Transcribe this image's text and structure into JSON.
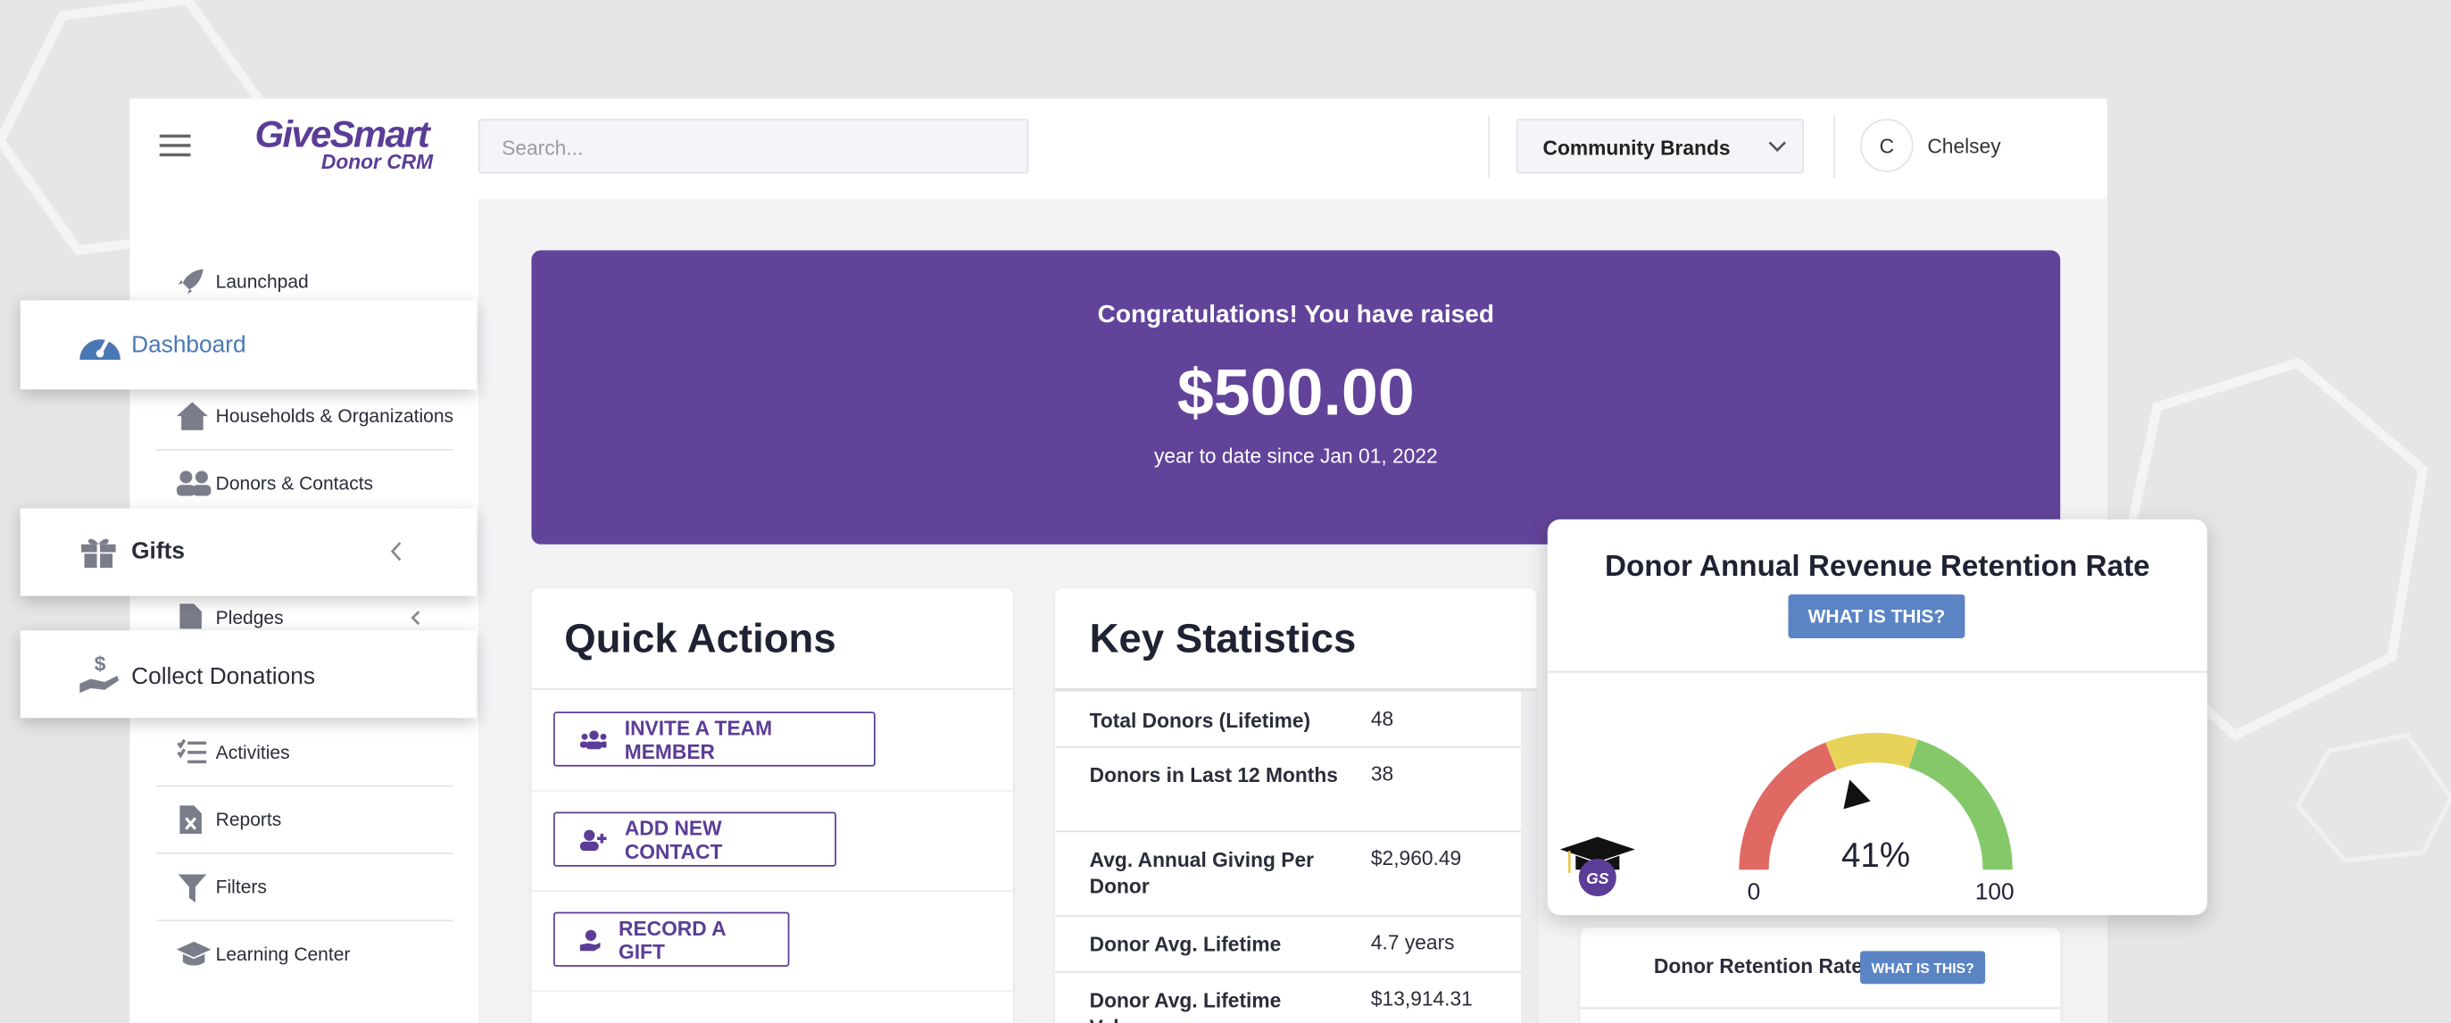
{
  "header": {
    "logo": "GiveSmart",
    "logo_sub": "Donor CRM",
    "search_placeholder": "Search...",
    "organization": "Community Brands",
    "user_initial": "C",
    "user_name": "Chelsey"
  },
  "sidebar": {
    "items": [
      "Launchpad",
      "Dashboard",
      "Households & Organizations",
      "Donors & Contacts",
      "Gifts",
      "Pledges",
      "Collect Donations",
      "Activities",
      "Reports",
      "Filters",
      "Learning Center"
    ]
  },
  "banner": {
    "heading": "Congratulations! You have raised",
    "amount": "$500.00",
    "caption": "year to date since Jan 01, 2022"
  },
  "quick_actions": {
    "title": "Quick Actions",
    "buttons": [
      "INVITE A TEAM MEMBER",
      "ADD NEW CONTACT",
      "RECORD A GIFT"
    ]
  },
  "key_statistics": {
    "title": "Key Statistics",
    "rows": [
      [
        "Total Donors (Lifetime)",
        "48"
      ],
      [
        "Donors in Last 12 Months",
        "38"
      ],
      [
        "Avg. Annual Giving Per Donor",
        "$2,960.49"
      ],
      [
        "Donor Avg. Lifetime",
        "4.7 years"
      ],
      [
        "Donor Avg. Lifetime Value",
        "$13,914.31"
      ]
    ]
  },
  "retention_card": {
    "title": "Donor Annual Revenue Retention Rate",
    "button": "WHAT IS THIS?",
    "gauge": {
      "value": 41,
      "label": "41%",
      "min": 0,
      "max": 100
    },
    "badge": "GS"
  },
  "retention_card_2": {
    "title": "Donor Retention Rate",
    "button": "WHAT IS THIS?"
  }
}
